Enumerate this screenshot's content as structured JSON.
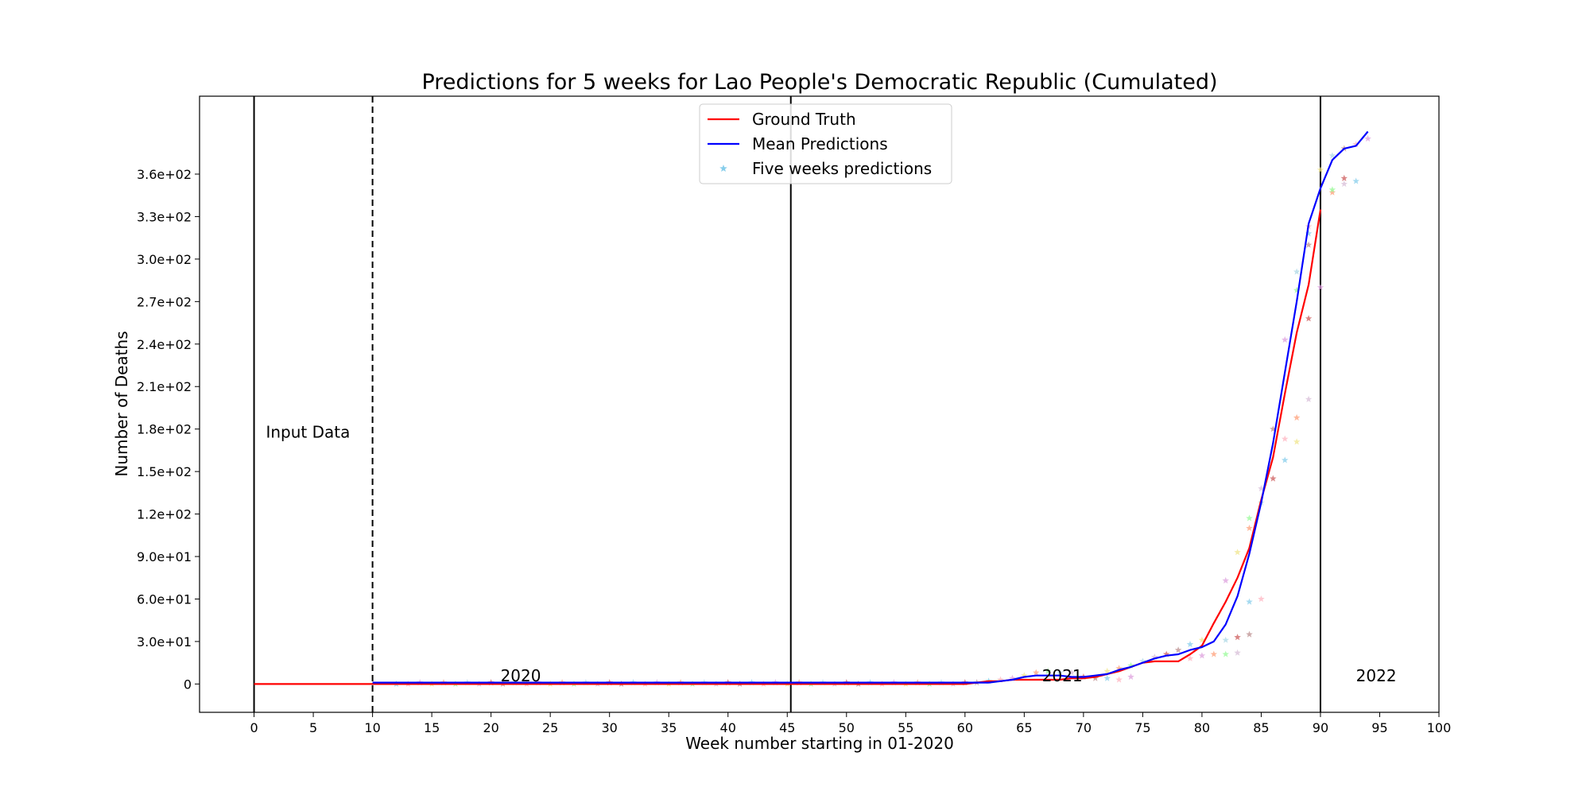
{
  "chart_data": {
    "type": "line",
    "title": "Predictions for 5 weeks for Lao People's Democratic Republic (Cumulated)",
    "xlabel": "Week number starting in 01-2020",
    "ylabel": "Number of Deaths",
    "xlim": [
      -4.6,
      100
    ],
    "ylim": [
      -20,
      415
    ],
    "x_ticks": [
      0,
      5,
      10,
      15,
      20,
      25,
      30,
      35,
      40,
      45,
      50,
      55,
      60,
      65,
      70,
      75,
      80,
      85,
      90,
      95,
      100
    ],
    "y_ticks": [
      {
        "value": 0,
        "label": "0"
      },
      {
        "value": 30,
        "label": "3.0e+01"
      },
      {
        "value": 60,
        "label": "6.0e+01"
      },
      {
        "value": 90,
        "label": "9.0e+01"
      },
      {
        "value": 120,
        "label": "1.2e+02"
      },
      {
        "value": 150,
        "label": "1.5e+02"
      },
      {
        "value": 180,
        "label": "1.8e+02"
      },
      {
        "value": 210,
        "label": "2.1e+02"
      },
      {
        "value": 240,
        "label": "2.4e+02"
      },
      {
        "value": 270,
        "label": "2.7e+02"
      },
      {
        "value": 300,
        "label": "3.0e+02"
      },
      {
        "value": 330,
        "label": "3.3e+02"
      },
      {
        "value": 360,
        "label": "3.6e+02"
      }
    ],
    "legend": {
      "placement": "upper center",
      "entries": [
        {
          "label": "Ground Truth",
          "kind": "line",
          "color": "#ff0000"
        },
        {
          "label": "Mean Predictions",
          "kind": "line",
          "color": "#0000ff"
        },
        {
          "label": "Five weeks predictions",
          "kind": "star",
          "color": "#87ceeb"
        }
      ]
    },
    "vertical_lines": [
      {
        "x": 0,
        "style": "solid"
      },
      {
        "x": 10,
        "style": "dashed"
      },
      {
        "x": 45.3,
        "style": "solid"
      },
      {
        "x": 90,
        "style": "solid"
      }
    ],
    "annotations": [
      {
        "text": "Input Data",
        "x": 1,
        "y": 174
      },
      {
        "text": "2020",
        "x": 20.8,
        "y": 2
      },
      {
        "text": "2021",
        "x": 66.5,
        "y": 2
      },
      {
        "text": "2022",
        "x": 93,
        "y": 2
      }
    ],
    "series": [
      {
        "name": "Ground Truth",
        "color": "#ff0000",
        "x": [
          0,
          10,
          20,
          30,
          40,
          50,
          60,
          61,
          62,
          63,
          64,
          65,
          66,
          67,
          68,
          69,
          70,
          71,
          72,
          73,
          74,
          75,
          76,
          77,
          78,
          79,
          80,
          81,
          82,
          83,
          84,
          85,
          86,
          87,
          88,
          89,
          90
        ],
        "y": [
          0,
          0,
          0,
          0,
          0,
          0,
          0,
          1,
          2,
          2,
          3,
          3,
          3,
          3,
          3,
          4,
          4,
          5,
          7,
          9,
          12,
          15,
          16,
          16,
          16,
          21,
          27,
          43,
          58,
          75,
          96,
          130,
          160,
          205,
          248,
          282,
          335
        ]
      },
      {
        "name": "Mean Predictions",
        "color": "#0000ff",
        "x": [
          10,
          20,
          30,
          40,
          50,
          60,
          61,
          62,
          63,
          64,
          65,
          66,
          67,
          68,
          69,
          70,
          71,
          72,
          73,
          74,
          75,
          76,
          77,
          78,
          79,
          80,
          81,
          82,
          83,
          84,
          85,
          86,
          87,
          88,
          89,
          90,
          91,
          92,
          93,
          94
        ],
        "y": [
          1,
          1,
          1,
          1,
          1,
          1,
          1,
          1,
          2,
          3,
          5,
          6,
          6,
          6,
          5,
          5,
          6,
          7,
          10,
          12,
          15,
          18,
          20,
          21,
          24,
          26,
          30,
          42,
          62,
          92,
          128,
          170,
          220,
          270,
          325,
          350,
          370,
          378,
          380,
          390
        ]
      }
    ],
    "scatter_points": [
      [
        12,
        0
      ],
      [
        13,
        0
      ],
      [
        14,
        1
      ],
      [
        15,
        0
      ],
      [
        16,
        1
      ],
      [
        17,
        0
      ],
      [
        18,
        1
      ],
      [
        19,
        0
      ],
      [
        20,
        1
      ],
      [
        21,
        0
      ],
      [
        22,
        1
      ],
      [
        23,
        0
      ],
      [
        24,
        1
      ],
      [
        25,
        0
      ],
      [
        26,
        1
      ],
      [
        27,
        0
      ],
      [
        28,
        1
      ],
      [
        29,
        0
      ],
      [
        30,
        1
      ],
      [
        31,
        0
      ],
      [
        32,
        1
      ],
      [
        33,
        0
      ],
      [
        34,
        1
      ],
      [
        35,
        0
      ],
      [
        36,
        1
      ],
      [
        37,
        0
      ],
      [
        38,
        1
      ],
      [
        39,
        0
      ],
      [
        40,
        1
      ],
      [
        41,
        0
      ],
      [
        42,
        1
      ],
      [
        43,
        0
      ],
      [
        44,
        1
      ],
      [
        45,
        0
      ],
      [
        46,
        1
      ],
      [
        47,
        0
      ],
      [
        48,
        1
      ],
      [
        49,
        0
      ],
      [
        50,
        1
      ],
      [
        51,
        0
      ],
      [
        52,
        1
      ],
      [
        53,
        0
      ],
      [
        54,
        1
      ],
      [
        55,
        0
      ],
      [
        56,
        1
      ],
      [
        57,
        0
      ],
      [
        58,
        1
      ],
      [
        59,
        0
      ],
      [
        60,
        1
      ],
      [
        61,
        1
      ],
      [
        62,
        2
      ],
      [
        63,
        3
      ],
      [
        64,
        4
      ],
      [
        65,
        6
      ],
      [
        66,
        8
      ],
      [
        67,
        9
      ],
      [
        68,
        8
      ],
      [
        69,
        8
      ],
      [
        70,
        5
      ],
      [
        71,
        4
      ],
      [
        72,
        4
      ],
      [
        73,
        3
      ],
      [
        74,
        5
      ],
      [
        72,
        9
      ],
      [
        73,
        11
      ],
      [
        74,
        13
      ],
      [
        75,
        16
      ],
      [
        76,
        19
      ],
      [
        77,
        21
      ],
      [
        78,
        24
      ],
      [
        79,
        28
      ],
      [
        79,
        18
      ],
      [
        80,
        20
      ],
      [
        80,
        31
      ],
      [
        81,
        21
      ],
      [
        82,
        21
      ],
      [
        82,
        31
      ],
      [
        83,
        22
      ],
      [
        83,
        33
      ],
      [
        84,
        35
      ],
      [
        84,
        58
      ],
      [
        85,
        60
      ],
      [
        82,
        73
      ],
      [
        83,
        93
      ],
      [
        84,
        110
      ],
      [
        84,
        117
      ],
      [
        85,
        128
      ],
      [
        85,
        138
      ],
      [
        86,
        145
      ],
      [
        86,
        180
      ],
      [
        87,
        158
      ],
      [
        87,
        173
      ],
      [
        87,
        243
      ],
      [
        88,
        171
      ],
      [
        88,
        188
      ],
      [
        88,
        278
      ],
      [
        88,
        291
      ],
      [
        89,
        201
      ],
      [
        89,
        258
      ],
      [
        89,
        310
      ],
      [
        89,
        318
      ],
      [
        89,
        323
      ],
      [
        90,
        280
      ],
      [
        90,
        363
      ],
      [
        91,
        347
      ],
      [
        91,
        349
      ],
      [
        91,
        373
      ],
      [
        92,
        353
      ],
      [
        92,
        357
      ],
      [
        92,
        378
      ],
      [
        93,
        355
      ],
      [
        93,
        381
      ],
      [
        94,
        385
      ]
    ],
    "scatter_colors": [
      "#87ceeb",
      "#ffb6c1",
      "#dda0dd",
      "#f0e68c",
      "#ffa07a",
      "#98fb98",
      "#add8e6",
      "#d8bfd8",
      "#cd5c5c",
      "#bc8f8f"
    ]
  }
}
